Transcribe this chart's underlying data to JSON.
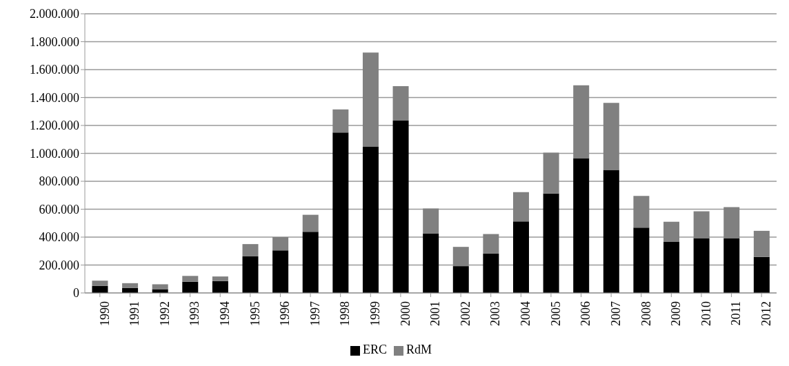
{
  "chart_data": {
    "type": "bar",
    "stacked": true,
    "categories": [
      "1990",
      "1991",
      "1992",
      "1993",
      "1994",
      "1995",
      "1996",
      "1997",
      "1998",
      "1999",
      "2000",
      "2001",
      "2002",
      "2003",
      "2004",
      "2005",
      "2006",
      "2007",
      "2008",
      "2009",
      "2010",
      "2011",
      "2012"
    ],
    "series": [
      {
        "name": "ERC",
        "color": "#000000",
        "values": [
          50000,
          35000,
          27000,
          80000,
          85000,
          262000,
          305000,
          438000,
          1150000,
          1050000,
          1235000,
          425000,
          192000,
          282000,
          512000,
          712000,
          965000,
          882000,
          468000,
          368000,
          392000,
          392000,
          258000
        ]
      },
      {
        "name": "RdM",
        "color": "#808080",
        "values": [
          38000,
          35000,
          35000,
          42000,
          33000,
          88000,
          95000,
          122000,
          165000,
          672000,
          247000,
          180000,
          138000,
          140000,
          210000,
          293000,
          523000,
          480000,
          227000,
          142000,
          193000,
          223000,
          187000
        ]
      }
    ],
    "ylim": [
      0,
      2000000
    ],
    "yticks": [
      0,
      {
        "value": 200000,
        "label": "200.000"
      },
      {
        "value": 400000,
        "label": "400.000"
      },
      {
        "value": 600000,
        "label": "600.000"
      },
      {
        "value": 800000,
        "label": "800.000"
      },
      {
        "value": 1000000,
        "label": "1.000.000"
      },
      {
        "value": 1200000,
        "label": "1.200.000"
      },
      {
        "value": 1400000,
        "label": "1.400.000"
      },
      {
        "value": 1600000,
        "label": "1.600.000"
      },
      {
        "value": 1800000,
        "label": "1.800.000"
      },
      {
        "value": 2000000,
        "label": "2.000.000"
      }
    ],
    "grid": "y",
    "legend": "bottom"
  }
}
